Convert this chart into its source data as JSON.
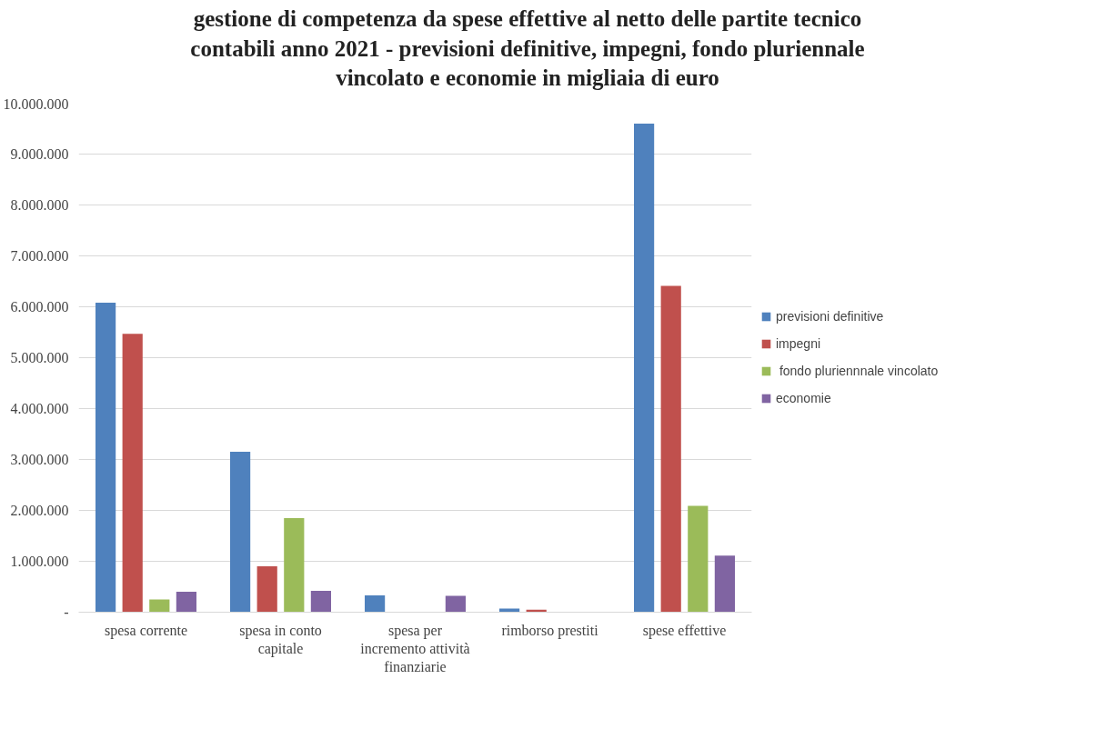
{
  "chart_data": {
    "type": "bar",
    "title": "gestione di competenza da spese effettive al netto delle partite tecnico contabili anno 2021 - previsioni definitive, impegni, fondo pluriennale vincolato e economie in migliaia di euro",
    "categories": [
      "spesa corrente",
      "spesa in conto\ncapitale",
      "spesa per\nincremento attività\nfinanziarie",
      "rimborso prestiti",
      "spese effettive"
    ],
    "series": [
      {
        "name": "previsioni definitive",
        "color": "#4f81bd",
        "values": [
          6080000,
          3150000,
          330000,
          70000,
          9600000
        ]
      },
      {
        "name": "impegni",
        "color": "#c0504d",
        "values": [
          5470000,
          900000,
          0,
          50000,
          6410000
        ]
      },
      {
        "name": " fondo pluriennnale vincolato",
        "color": "#9bbb59",
        "values": [
          250000,
          1850000,
          0,
          0,
          2090000
        ]
      },
      {
        "name": "economie",
        "color": "#8064a2",
        "values": [
          400000,
          420000,
          320000,
          0,
          1110000
        ]
      }
    ],
    "ylim": [
      0,
      10000000
    ],
    "yticks": [
      {
        "value": 0,
        "label": "-"
      },
      {
        "value": 1000000,
        "label": "1.000.000"
      },
      {
        "value": 2000000,
        "label": "2.000.000"
      },
      {
        "value": 3000000,
        "label": "3.000.000"
      },
      {
        "value": 4000000,
        "label": "4.000.000"
      },
      {
        "value": 5000000,
        "label": "5.000.000"
      },
      {
        "value": 6000000,
        "label": "6.000.000"
      },
      {
        "value": 7000000,
        "label": "7.000.000"
      },
      {
        "value": 8000000,
        "label": "8.000.000"
      },
      {
        "value": 9000000,
        "label": "9.000.000"
      },
      {
        "value": 10000000,
        "label": "10.000.000"
      }
    ],
    "grid": "y",
    "legend": "right"
  }
}
